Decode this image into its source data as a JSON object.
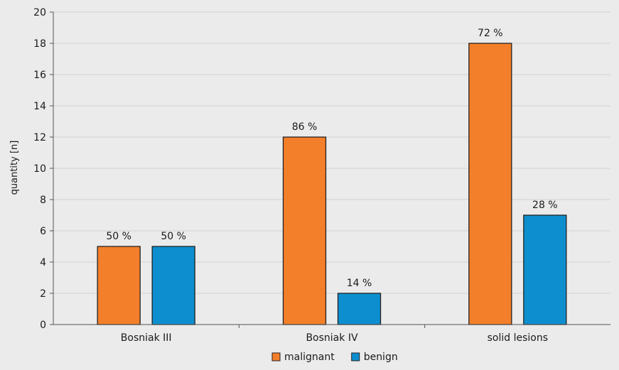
{
  "chart_data": {
    "type": "bar",
    "title": "",
    "xlabel": "",
    "ylabel": "quantity [n]",
    "ylim": [
      0,
      20
    ],
    "yticks": [
      0,
      2,
      4,
      6,
      8,
      10,
      12,
      14,
      16,
      18,
      20
    ],
    "categories": [
      "Bosniak III",
      "Bosniak IV",
      "solid lesions"
    ],
    "series": [
      {
        "name": "malignant",
        "color": "#f47f2a",
        "values": [
          5,
          12,
          18
        ],
        "labels": [
          "50 %",
          "86 %",
          "72 %"
        ]
      },
      {
        "name": "benign",
        "color": "#0d8fcf",
        "values": [
          5,
          2,
          7
        ],
        "labels": [
          "50 %",
          "14 %",
          "28 %"
        ]
      }
    ],
    "grid": true,
    "legend": "bottom-center"
  }
}
